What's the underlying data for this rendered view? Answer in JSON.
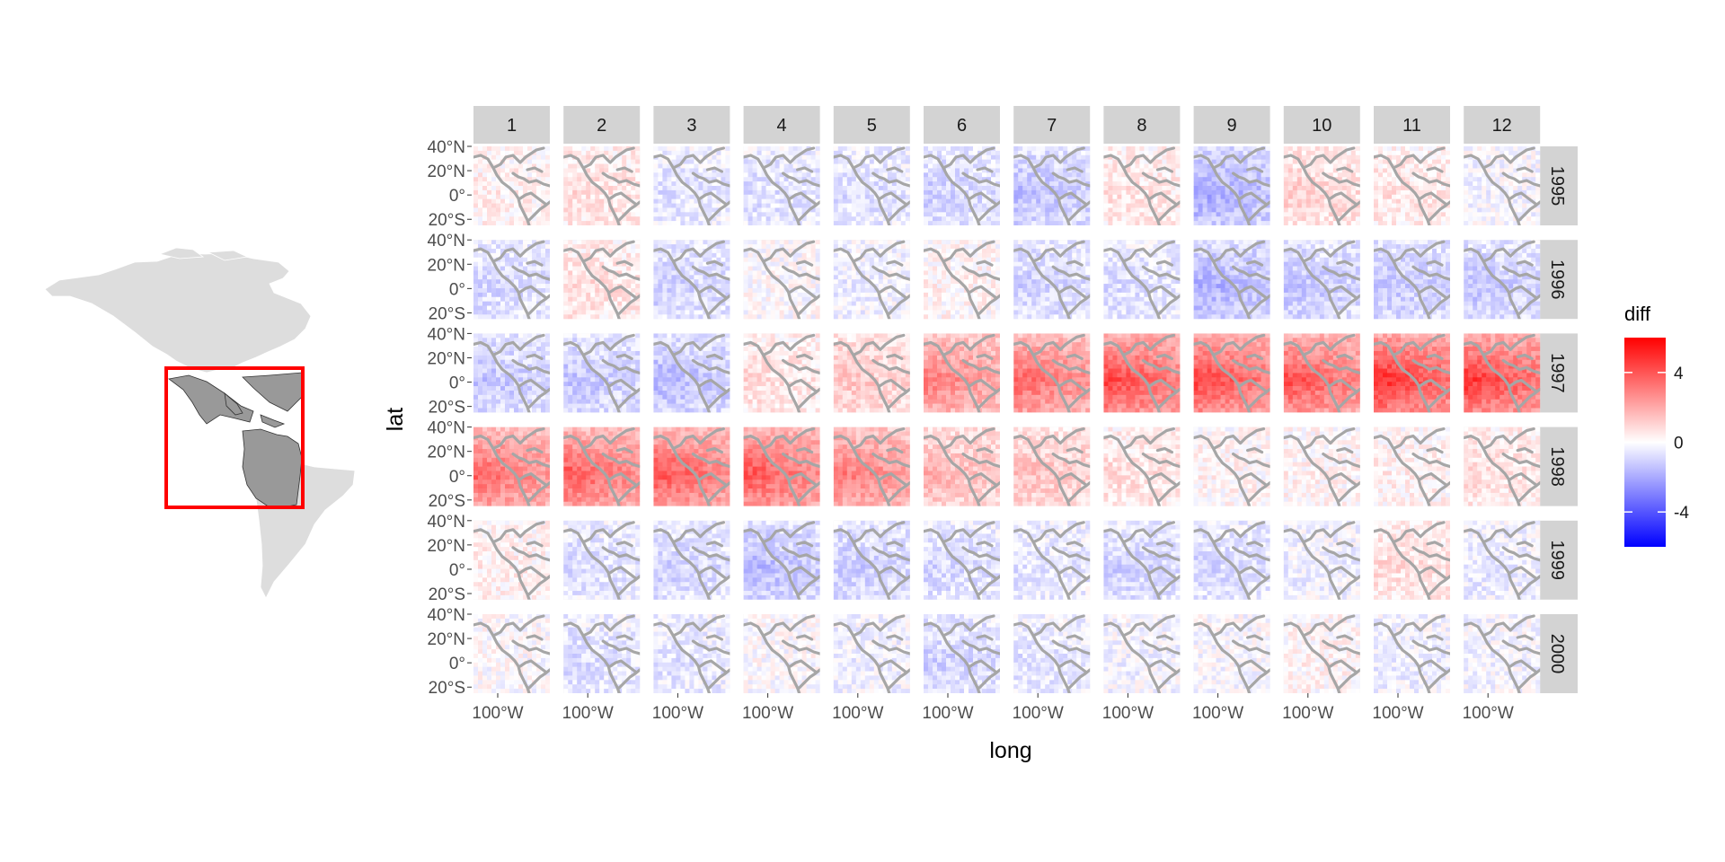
{
  "chart_data": {
    "type": "heatmap",
    "title": "",
    "xlabel": "long",
    "ylabel": "lat",
    "facet_cols": [
      "1",
      "2",
      "3",
      "4",
      "5",
      "6",
      "7",
      "8",
      "9",
      "10",
      "11",
      "12"
    ],
    "facet_rows": [
      "1995",
      "1996",
      "1997",
      "1998",
      "1999",
      "2000"
    ],
    "x_tick_labels": [
      "100°W"
    ],
    "y_tick_labels": [
      "40°N",
      "20°N",
      "0°",
      "20°S"
    ],
    "y_ticks": [
      40,
      20,
      0,
      -20
    ],
    "ylim": [
      -25,
      40
    ],
    "legend": {
      "title": "diff",
      "tick_labels": [
        "4",
        "0",
        "-4"
      ],
      "ticks": [
        4,
        0,
        -4
      ],
      "range": [
        -6,
        6
      ],
      "low_color": "#0000ff",
      "mid_color": "#ffffff",
      "high_color": "#ff0000",
      "placement": "right"
    },
    "approx_mean_diff": [
      [
        0.3,
        0.6,
        -0.5,
        -0.6,
        -0.6,
        -0.8,
        -1.1,
        0.5,
        -1.5,
        0.8,
        0.5,
        -0.2
      ],
      [
        -0.7,
        0.6,
        -0.8,
        0.0,
        -0.3,
        0.2,
        -0.8,
        -0.6,
        -1.4,
        -1.0,
        -1.0,
        -1.0
      ],
      [
        -1.0,
        -1.0,
        -1.2,
        0.6,
        1.0,
        2.2,
        2.6,
        3.2,
        3.2,
        3.0,
        3.6,
        3.4
      ],
      [
        2.6,
        2.8,
        2.9,
        2.9,
        2.3,
        1.3,
        1.1,
        0.6,
        0.2,
        0.2,
        0.3,
        0.6
      ],
      [
        0.3,
        -0.6,
        -0.8,
        -1.2,
        -0.9,
        -0.7,
        -0.5,
        -0.8,
        -0.7,
        -0.3,
        0.6,
        -0.4
      ],
      [
        0.0,
        -0.6,
        -0.5,
        0.0,
        -0.3,
        -0.8,
        -0.5,
        -0.2,
        -0.1,
        0.2,
        -0.3,
        -0.2
      ]
    ],
    "color_scale": {
      "low": "#0000ff",
      "mid": "#ffffff",
      "high": "#ff0000"
    }
  },
  "inset_map": {
    "highlight_color": "#ff0000",
    "land_color": "#dddddd",
    "region_color": "#999999"
  },
  "colors": {
    "strip_background": "#d3d3d3",
    "panel_background": "#ebebeb",
    "coastline": "#a6a6a6"
  }
}
